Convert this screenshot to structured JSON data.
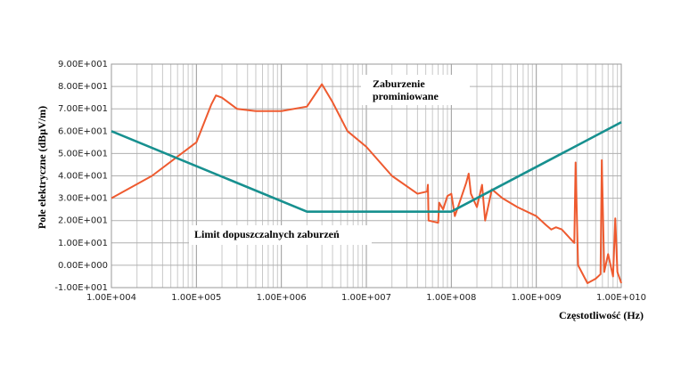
{
  "chart_data": {
    "type": "line",
    "x_label": "Częstotliwość (Hz)",
    "y_label": "Pole elektryczne (dBµV/m)",
    "annotations": [
      "Zaburzenie",
      "prominiowane",
      "Limit dopuszczalnych zaburzeń"
    ],
    "xscale": "log",
    "grid": true,
    "xlim": [
      10000,
      10000000000
    ],
    "ylim": [
      -10,
      90
    ],
    "xticks": [
      {
        "value": 10000,
        "label": "1.00E+004"
      },
      {
        "value": 100000,
        "label": "1.00E+005"
      },
      {
        "value": 1000000,
        "label": "1.00E+006"
      },
      {
        "value": 10000000,
        "label": "1.00E+007"
      },
      {
        "value": 100000000,
        "label": "1.00E+008"
      },
      {
        "value": 1000000000,
        "label": "1.00E+009"
      },
      {
        "value": 10000000000,
        "label": "1.00E+010"
      }
    ],
    "yticks": [
      {
        "value": -10,
        "label": "-1.00E+001"
      },
      {
        "value": 0,
        "label": "0.00E+000"
      },
      {
        "value": 10,
        "label": "1.00E+001"
      },
      {
        "value": 20,
        "label": "2.00E+001"
      },
      {
        "value": 30,
        "label": "3.00E+001"
      },
      {
        "value": 40,
        "label": "4.00E+001"
      },
      {
        "value": 50,
        "label": "5.00E+001"
      },
      {
        "value": 60,
        "label": "6.00E+001"
      },
      {
        "value": 70,
        "label": "7.00E+001"
      },
      {
        "value": 80,
        "label": "8.00E+001"
      },
      {
        "value": 90,
        "label": "9.00E+001"
      }
    ],
    "series": [
      {
        "color": "#ee5a2f",
        "x": [
          10000,
          30000,
          100000,
          150000,
          170000,
          200000,
          300000,
          500000,
          1000000,
          2000000,
          3000000,
          4000000,
          6000000,
          10000000,
          20000000,
          40000000,
          52000000,
          53000000,
          54000000,
          70000000,
          72000000,
          80000000,
          90000000,
          100000000,
          110000000,
          130000000,
          150000000,
          160000000,
          170000000,
          200000000,
          230000000,
          250000000,
          300000000,
          400000000,
          600000000,
          1000000000,
          1300000000,
          1500000000,
          1700000000,
          2000000000,
          2500000000,
          2800000000,
          2900000000,
          3100000000,
          4000000000,
          5000000000,
          5700000000,
          5900000000,
          6300000000,
          7000000000,
          8000000000,
          8500000000,
          9000000000,
          10000000000
        ],
        "values": [
          30,
          40,
          55,
          72,
          76,
          75,
          70,
          69,
          69,
          71,
          81,
          73,
          60,
          53,
          40,
          32,
          33,
          36,
          20,
          19,
          28,
          25,
          31,
          32,
          22,
          30,
          37,
          41,
          32,
          26,
          36,
          20,
          34,
          30,
          26,
          22,
          18,
          16,
          17,
          16,
          12,
          10,
          46,
          0,
          -8,
          -6,
          -4,
          47,
          -3,
          5,
          -5,
          21,
          -3,
          -8
        ]
      },
      {
        "color": "#17908f",
        "x": [
          10000,
          2000000,
          100000000,
          10000000000
        ],
        "values": [
          60,
          24,
          24,
          64
        ]
      }
    ]
  }
}
